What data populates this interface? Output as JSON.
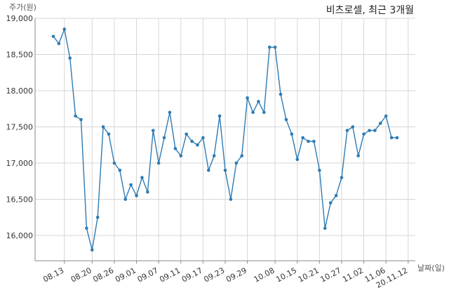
{
  "chart_data": {
    "type": "line",
    "title": "비츠로셀, 최근 3개월",
    "xlabel": "날짜(일)",
    "ylabel": "주가(원)",
    "ylim": [
      15650,
      19000
    ],
    "y_ticks": [
      "16,000",
      "16,500",
      "17,000",
      "17,500",
      "18,000",
      "18,500",
      "19,000"
    ],
    "y_tick_values": [
      16000,
      16500,
      17000,
      17500,
      18000,
      18500,
      19000
    ],
    "x_tick_labels": [
      "08.13",
      "08.20",
      "08.26",
      "09.01",
      "09.07",
      "09.11",
      "09.17",
      "09.23",
      "09.29",
      "10.08",
      "10.15",
      "10.21",
      "10.27",
      "11.02",
      "11.06",
      "20.11.12"
    ],
    "x_tick_index": [
      2,
      7,
      11,
      15,
      19,
      23,
      27,
      31,
      35,
      40,
      44,
      48,
      52,
      56,
      60,
      64
    ],
    "grid": true,
    "line_color": "#2e7bb4",
    "values": [
      18750,
      18650,
      18850,
      18450,
      17650,
      17600,
      16100,
      15800,
      16250,
      17500,
      17400,
      17000,
      16900,
      16500,
      16700,
      16550,
      16800,
      16600,
      17450,
      17000,
      17350,
      17700,
      17200,
      17100,
      17400,
      17300,
      17250,
      17350,
      16900,
      17100,
      17650,
      16900,
      16500,
      17000,
      17100,
      17900,
      17700,
      17850,
      17700,
      18600,
      18600,
      17950,
      17600,
      17400,
      17050,
      17350,
      17300,
      17300,
      16900,
      16100,
      16450,
      16550,
      16800,
      17450,
      17500,
      17100,
      17400,
      17450,
      17450,
      17550,
      17650,
      17350,
      17350
    ]
  }
}
